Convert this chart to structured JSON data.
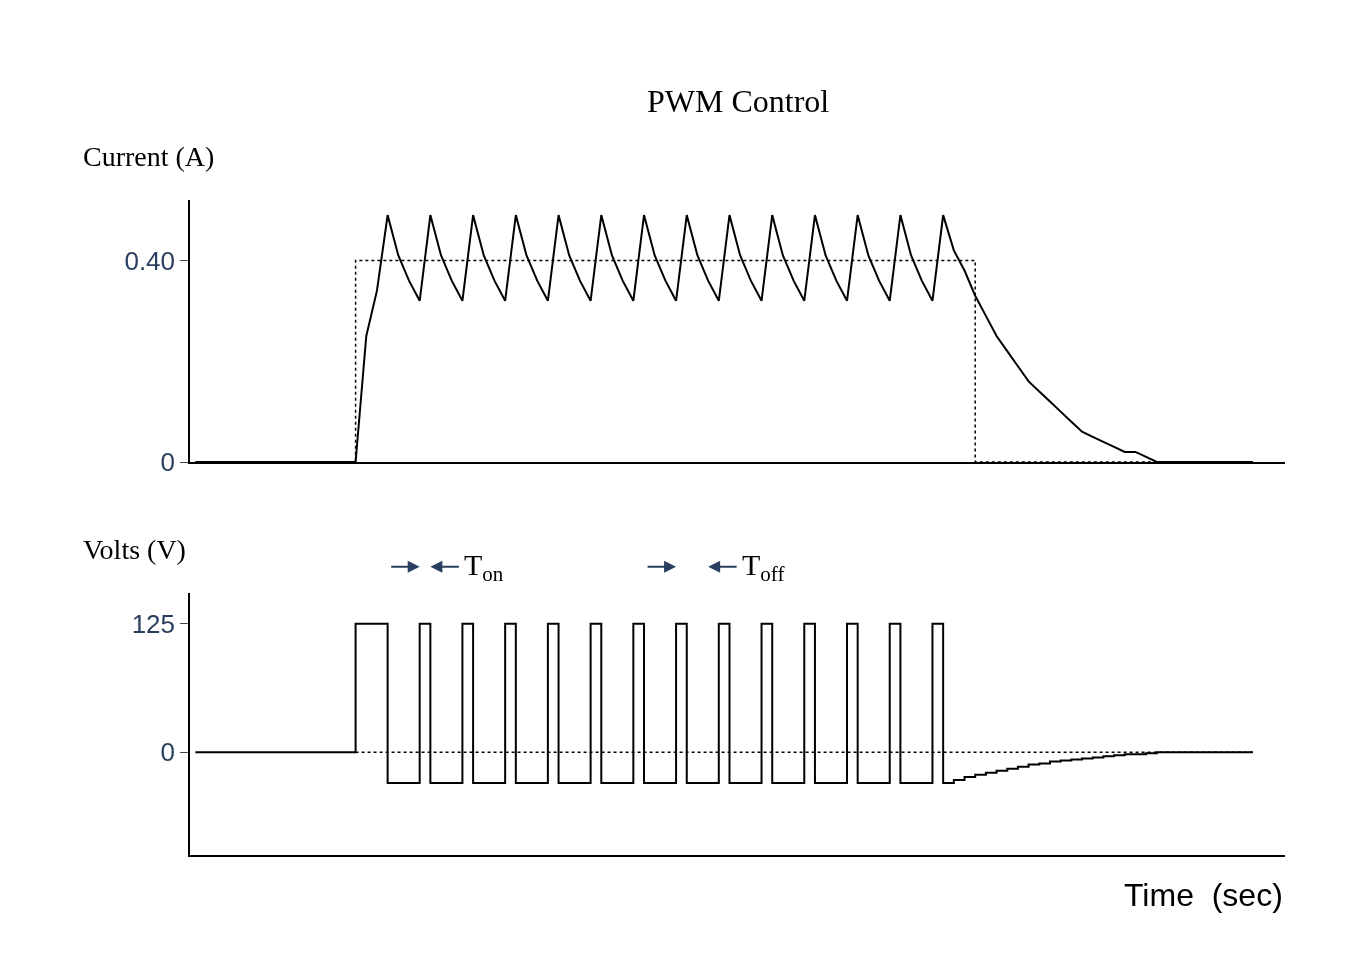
{
  "chart_data": [
    {
      "type": "line",
      "title": "PWM Control",
      "ylabel": "Current (A)",
      "tick_labels": "y",
      "categories": [
        null,
        null,
        null,
        null,
        null,
        null,
        null,
        null,
        null,
        null,
        null,
        null,
        null,
        null,
        null,
        null,
        null,
        null,
        null,
        null,
        null,
        null,
        null,
        null,
        null,
        null,
        null,
        null,
        null,
        null,
        null,
        null,
        null,
        null,
        null,
        null,
        null,
        null,
        null,
        null,
        null,
        null,
        null,
        null,
        null,
        null,
        null,
        null,
        null,
        null,
        null,
        null,
        null,
        null,
        null,
        null,
        null,
        null,
        null,
        null,
        null,
        null,
        null,
        null,
        null,
        null,
        null,
        null,
        null,
        null,
        null,
        null,
        null,
        null,
        null,
        null,
        null,
        null,
        null,
        null,
        null,
        null,
        null,
        null,
        null,
        null,
        null,
        null,
        null,
        null,
        null,
        null,
        null,
        null,
        null,
        null,
        null,
        null,
        null,
        null
      ],
      "series": [
        {
          "color": "#000000",
          "line_style": "solid",
          "values": [
            0,
            0,
            0,
            0,
            0,
            0,
            0,
            0,
            0,
            0,
            0,
            0,
            0,
            0,
            0,
            0,
            0.25,
            0.34,
            0.49,
            0.41,
            0.36,
            0.32,
            0.49,
            0.41,
            0.36,
            0.32,
            0.49,
            0.41,
            0.36,
            0.32,
            0.49,
            0.41,
            0.36,
            0.32,
            0.49,
            0.41,
            0.36,
            0.32,
            0.49,
            0.41,
            0.36,
            0.32,
            0.49,
            0.41,
            0.36,
            0.32,
            0.49,
            0.41,
            0.36,
            0.32,
            0.49,
            0.41,
            0.36,
            0.32,
            0.49,
            0.41,
            0.36,
            0.32,
            0.49,
            0.41,
            0.36,
            0.32,
            0.49,
            0.41,
            0.36,
            0.32,
            0.49,
            0.41,
            0.36,
            0.32,
            0.49,
            0.42,
            0.38,
            0.33,
            0.29,
            0.25,
            0.22,
            0.19,
            0.16,
            0.14,
            0.12,
            0.1,
            0.08,
            0.06,
            0.05,
            0.04,
            0.03,
            0.02,
            0.02,
            0.01,
            0,
            0,
            0,
            0,
            0,
            0,
            0,
            0,
            0,
            0
          ]
        },
        {
          "type": "step",
          "color": "#000000",
          "line_style": "dotted",
          "values": [
            null,
            null,
            null,
            null,
            null,
            null,
            null,
            null,
            null,
            null,
            null,
            null,
            null,
            null,
            0,
            0.4,
            0.4,
            0.4,
            0.4,
            0.4,
            0.4,
            0.4,
            0.4,
            0.4,
            0.4,
            0.4,
            0.4,
            0.4,
            0.4,
            0.4,
            0.4,
            0.4,
            0.4,
            0.4,
            0.4,
            0.4,
            0.4,
            0.4,
            0.4,
            0.4,
            0.4,
            0.4,
            0.4,
            0.4,
            0.4,
            0.4,
            0.4,
            0.4,
            0.4,
            0.4,
            0.4,
            0.4,
            0.4,
            0.4,
            0.4,
            0.4,
            0.4,
            0.4,
            0.4,
            0.4,
            0.4,
            0.4,
            0.4,
            0.4,
            0.4,
            0.4,
            0.4,
            0.4,
            0.4,
            0.4,
            0.4,
            0.4,
            0.4,
            0,
            0,
            0,
            0,
            0,
            0,
            0,
            0,
            0,
            0,
            0,
            0,
            0,
            0,
            0,
            0,
            0,
            0,
            null,
            null,
            null,
            null,
            null,
            null,
            null,
            null,
            null
          ]
        }
      ],
      "ylim": [
        0,
        0.52
      ],
      "yticks": [
        0,
        {
          "value": 0.4,
          "label": "0.40"
        }
      ]
    },
    {
      "type": "step",
      "ylabel": "Volts (V)",
      "xlabel": "Time  (sec)",
      "tick_labels": "y",
      "categories": [
        null,
        null,
        null,
        null,
        null,
        null,
        null,
        null,
        null,
        null,
        null,
        null,
        null,
        null,
        null,
        null,
        null,
        null,
        null,
        null,
        null,
        null,
        null,
        null,
        null,
        null,
        null,
        null,
        null,
        null,
        null,
        null,
        null,
        null,
        null,
        null,
        null,
        null,
        null,
        null,
        null,
        null,
        null,
        null,
        null,
        null,
        null,
        null,
        null,
        null,
        null,
        null,
        null,
        null,
        null,
        null,
        null,
        null,
        null,
        null,
        null,
        null,
        null,
        null,
        null,
        null,
        null,
        null,
        null,
        null,
        null,
        null,
        null,
        null,
        null,
        null,
        null,
        null,
        null,
        null,
        null,
        null,
        null,
        null,
        null,
        null,
        null,
        null,
        null,
        null,
        null,
        null,
        null,
        null,
        null,
        null,
        null,
        null,
        null,
        null
      ],
      "series": [
        {
          "color": "#000000",
          "line_style": "solid",
          "values": [
            0,
            0,
            0,
            0,
            0,
            0,
            0,
            0,
            0,
            0,
            0,
            0,
            0,
            0,
            0,
            125,
            125,
            125,
            -30,
            -30,
            -30,
            125,
            -30,
            -30,
            -30,
            125,
            -30,
            -30,
            -30,
            125,
            -30,
            -30,
            -30,
            125,
            -30,
            -30,
            -30,
            125,
            -30,
            -30,
            -30,
            125,
            -30,
            -30,
            -30,
            125,
            -30,
            -30,
            -30,
            125,
            -30,
            -30,
            -30,
            125,
            -30,
            -30,
            -30,
            125,
            -30,
            -30,
            -30,
            125,
            -30,
            -30,
            -30,
            125,
            -30,
            -30,
            -30,
            125,
            -30,
            -27,
            -24,
            -22,
            -20,
            -18,
            -16,
            -14,
            -12,
            -11,
            -9,
            -8,
            -7,
            -6,
            -5,
            -4,
            -3,
            -2,
            -2,
            -1,
            0,
            0,
            0,
            0,
            0,
            0,
            0,
            0,
            0,
            0
          ]
        },
        {
          "color": "#000000",
          "line_style": "dotted",
          "values": [
            null,
            null,
            null,
            null,
            null,
            null,
            null,
            null,
            null,
            null,
            null,
            null,
            null,
            null,
            null,
            0,
            0,
            0,
            0,
            0,
            0,
            0,
            0,
            0,
            0,
            0,
            0,
            0,
            0,
            0,
            0,
            0,
            0,
            0,
            0,
            0,
            0,
            0,
            0,
            0,
            0,
            0,
            0,
            0,
            0,
            0,
            0,
            0,
            0,
            0,
            0,
            0,
            0,
            0,
            0,
            0,
            0,
            0,
            0,
            0,
            0,
            0,
            0,
            0,
            0,
            0,
            0,
            0,
            0,
            0,
            0,
            0,
            0,
            0,
            0,
            0,
            0,
            0,
            0,
            0,
            0,
            0,
            0,
            0,
            0,
            0,
            0,
            0,
            0,
            0,
            0,
            0,
            0,
            0,
            0,
            0,
            0,
            0,
            0,
            0
          ]
        }
      ],
      "annotations": [
        "T$_{on}$",
        "T$_{off}$"
      ],
      "ylim": [
        -100,
        155
      ],
      "yticks": [
        0,
        125
      ]
    }
  ]
}
